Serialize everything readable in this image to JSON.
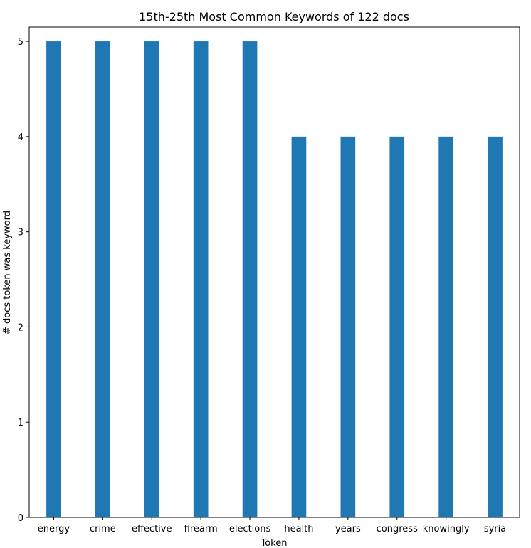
{
  "chart_data": {
    "type": "bar",
    "title": "15th-25th Most Common Keywords of 122 docs",
    "xlabel": "Token",
    "ylabel": "# docs token was keyword",
    "categories": [
      "energy",
      "crime",
      "effective",
      "firearm",
      "elections",
      "health",
      "years",
      "congress",
      "knowingly",
      "syria"
    ],
    "values": [
      5,
      5,
      5,
      5,
      5,
      4,
      4,
      4,
      4,
      4
    ],
    "ylim": [
      0,
      5.15
    ],
    "yticks": [
      0,
      1,
      2,
      3,
      4,
      5
    ],
    "grid": false,
    "legend": "none",
    "bar_color": "#1f77b4"
  }
}
